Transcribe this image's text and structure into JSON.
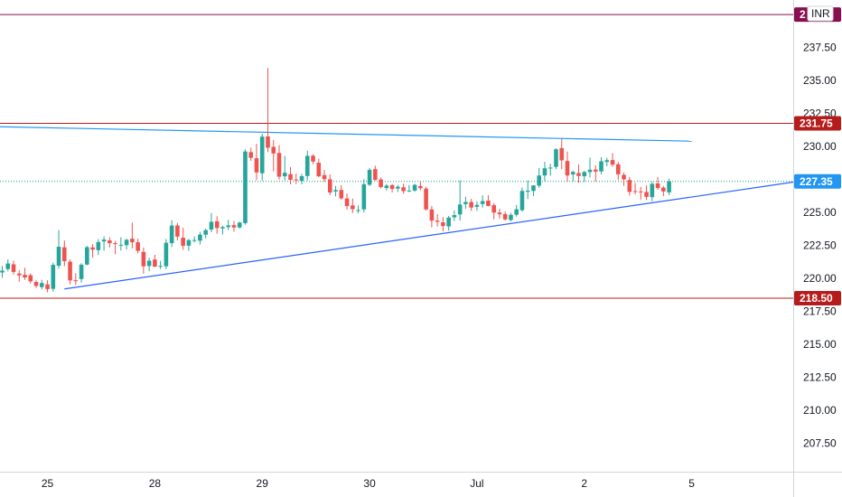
{
  "chart_data": {
    "type": "candlestick",
    "currency_badge": "INR",
    "y_axis_ticks": [
      237.5,
      235.0,
      232.5,
      230.0,
      227.5,
      225.0,
      222.5,
      220.0,
      217.5,
      215.0,
      212.5,
      210.0,
      207.5
    ],
    "y_axis_tick_labels": [
      "237.50",
      "235.00",
      "232.50",
      "230.00",
      "227.50",
      "225.00",
      "222.50",
      "220.00",
      "217.50",
      "215.00",
      "212.50",
      "210.00",
      "207.50"
    ],
    "ylim": [
      205.0,
      240.0
    ],
    "x_axis_ticks": [
      {
        "label": "25",
        "index": 8
      },
      {
        "label": "28",
        "index": 27
      },
      {
        "label": "29",
        "index": 46
      },
      {
        "label": "30",
        "index": 65
      },
      {
        "label": "Jul",
        "index": 84
      },
      {
        "label": "2",
        "index": 103
      },
      {
        "label": "5",
        "index": 122
      }
    ],
    "horizontal_levels": [
      {
        "value": 240.0,
        "label": "2",
        "color": "#880e4f"
      },
      {
        "value": 231.75,
        "label": "231.75",
        "color": "#b71c1c"
      },
      {
        "value": 218.5,
        "label": "218.50",
        "color": "#b71c1c"
      }
    ],
    "last_price": {
      "value": 227.35,
      "label": "227.35",
      "color": "#2196f3"
    },
    "trendlines": [
      {
        "x1": -1.0,
        "y1": 231.5,
        "x2": 122.0,
        "y2": 230.4,
        "color": "#2196f3"
      },
      {
        "x1": 11.0,
        "y1": 219.2,
        "x2": 140.0,
        "y2": 227.3,
        "color": "#2962ff"
      }
    ],
    "colors": {
      "up": "#26a69a",
      "down": "#ef5350"
    },
    "candles": [
      [
        220.45,
        220.95,
        220.05,
        220.59
      ],
      [
        220.71,
        221.44,
        220.54,
        221.13
      ],
      [
        221.07,
        221.35,
        220.3,
        220.49
      ],
      [
        220.37,
        220.62,
        219.75,
        220.23
      ],
      [
        220.27,
        220.81,
        219.89,
        220.07
      ],
      [
        220.24,
        220.38,
        219.61,
        219.78
      ],
      [
        219.73,
        219.85,
        219.28,
        219.43
      ],
      [
        219.34,
        219.9,
        219.16,
        219.65
      ],
      [
        219.55,
        219.86,
        218.95,
        219.19
      ],
      [
        219.21,
        221.2,
        219.0,
        221.03
      ],
      [
        220.96,
        223.67,
        220.74,
        222.4
      ],
      [
        222.36,
        222.87,
        220.93,
        221.31
      ],
      [
        221.27,
        221.44,
        219.55,
        219.85
      ],
      [
        219.86,
        220.39,
        219.5,
        219.81
      ],
      [
        219.95,
        221.15,
        219.69,
        221.04
      ],
      [
        221.05,
        222.46,
        220.99,
        222.37
      ],
      [
        222.35,
        222.6,
        221.57,
        222.18
      ],
      [
        222.14,
        222.98,
        221.77,
        222.76
      ],
      [
        222.8,
        223.19,
        222.11,
        222.94
      ],
      [
        222.88,
        223.12,
        222.34,
        222.67
      ],
      [
        222.67,
        222.84,
        221.83,
        222.62
      ],
      [
        222.5,
        223.12,
        222.11,
        222.55
      ],
      [
        222.52,
        223.01,
        222.19,
        222.93
      ],
      [
        223.01,
        224.23,
        222.28,
        222.74
      ],
      [
        222.74,
        223.0,
        221.88,
        222.09
      ],
      [
        222.01,
        222.34,
        220.36,
        220.92
      ],
      [
        220.94,
        221.56,
        220.55,
        221.34
      ],
      [
        221.43,
        221.79,
        220.86,
        220.89
      ],
      [
        220.89,
        221.32,
        220.71,
        220.95
      ],
      [
        220.92,
        222.98,
        220.7,
        222.7
      ],
      [
        222.67,
        224.41,
        222.38,
        224.01
      ],
      [
        224.01,
        224.21,
        222.89,
        223.17
      ],
      [
        223.08,
        223.85,
        222.16,
        222.47
      ],
      [
        222.48,
        223.0,
        222.09,
        222.9
      ],
      [
        222.91,
        223.18,
        222.73,
        222.91
      ],
      [
        222.86,
        223.53,
        222.57,
        223.32
      ],
      [
        223.31,
        223.77,
        223.03,
        223.66
      ],
      [
        223.7,
        224.95,
        223.5,
        224.29
      ],
      [
        224.33,
        224.71,
        223.38,
        223.82
      ],
      [
        223.79,
        224.0,
        223.33,
        223.89
      ],
      [
        223.89,
        224.44,
        223.66,
        224.02
      ],
      [
        224.04,
        224.35,
        223.54,
        223.86
      ],
      [
        223.86,
        224.3,
        223.78,
        224.23
      ],
      [
        224.19,
        229.79,
        224.07,
        229.62
      ],
      [
        229.57,
        229.91,
        228.91,
        229.14
      ],
      [
        229.11,
        230.21,
        227.44,
        228.03
      ],
      [
        227.97,
        230.96,
        227.41,
        230.75
      ],
      [
        230.76,
        235.95,
        229.57,
        229.91
      ],
      [
        229.97,
        230.49,
        228.12,
        229.47
      ],
      [
        229.51,
        230.11,
        227.49,
        227.71
      ],
      [
        227.74,
        229.28,
        227.44,
        228.01
      ],
      [
        227.9,
        228.43,
        227.13,
        227.47
      ],
      [
        227.5,
        227.94,
        227.16,
        227.49
      ],
      [
        227.4,
        227.93,
        227.13,
        227.75
      ],
      [
        227.76,
        229.68,
        227.43,
        229.29
      ],
      [
        229.3,
        229.41,
        228.65,
        228.86
      ],
      [
        228.77,
        229.07,
        227.67,
        227.74
      ],
      [
        227.83,
        228.23,
        227.32,
        227.52
      ],
      [
        227.51,
        227.88,
        226.32,
        226.51
      ],
      [
        226.59,
        227.01,
        226.22,
        226.7
      ],
      [
        226.7,
        227.07,
        225.94,
        226.07
      ],
      [
        226.06,
        226.43,
        225.21,
        225.48
      ],
      [
        225.53,
        226.05,
        224.96,
        225.25
      ],
      [
        225.18,
        225.53,
        224.94,
        225.18
      ],
      [
        225.23,
        227.51,
        225.0,
        227.14
      ],
      [
        227.1,
        228.36,
        227.0,
        228.23
      ],
      [
        228.28,
        228.54,
        227.41,
        227.47
      ],
      [
        227.5,
        227.65,
        226.82,
        226.92
      ],
      [
        226.85,
        227.17,
        226.67,
        227.03
      ],
      [
        227.07,
        227.16,
        226.52,
        226.78
      ],
      [
        226.81,
        227.08,
        226.56,
        226.95
      ],
      [
        226.91,
        227.18,
        226.42,
        226.62
      ],
      [
        226.63,
        227.08,
        226.54,
        226.66
      ],
      [
        226.66,
        227.18,
        226.57,
        227.09
      ],
      [
        227.0,
        227.38,
        226.68,
        226.84
      ],
      [
        226.81,
        226.95,
        225.14,
        225.23
      ],
      [
        225.23,
        225.48,
        223.87,
        224.38
      ],
      [
        224.38,
        224.88,
        223.93,
        224.29
      ],
      [
        224.25,
        224.65,
        223.56,
        223.97
      ],
      [
        223.94,
        224.74,
        223.62,
        224.61
      ],
      [
        224.63,
        225.16,
        224.35,
        224.8
      ],
      [
        224.85,
        227.43,
        224.38,
        225.6
      ],
      [
        225.63,
        226.19,
        225.28,
        225.79
      ],
      [
        225.79,
        226.03,
        225.11,
        225.37
      ],
      [
        225.43,
        225.84,
        225.12,
        225.57
      ],
      [
        225.64,
        226.29,
        225.37,
        225.86
      ],
      [
        225.9,
        226.31,
        225.46,
        225.49
      ],
      [
        225.55,
        225.72,
        224.48,
        224.99
      ],
      [
        224.99,
        225.28,
        224.53,
        224.86
      ],
      [
        224.88,
        225.07,
        224.38,
        224.47
      ],
      [
        224.43,
        224.97,
        224.33,
        224.82
      ],
      [
        224.83,
        225.57,
        224.68,
        225.24
      ],
      [
        225.17,
        226.88,
        225.07,
        226.63
      ],
      [
        226.57,
        227.42,
        226.02,
        226.65
      ],
      [
        226.63,
        227.06,
        226.24,
        227.05
      ],
      [
        227.03,
        228.38,
        226.86,
        227.8
      ],
      [
        227.8,
        228.84,
        227.35,
        228.35
      ],
      [
        228.38,
        228.69,
        227.78,
        228.4
      ],
      [
        228.45,
        229.86,
        228.28,
        229.79
      ],
      [
        229.88,
        230.58,
        228.29,
        228.95
      ],
      [
        228.9,
        229.62,
        227.34,
        227.8
      ],
      [
        227.88,
        228.18,
        227.35,
        228.07
      ],
      [
        227.99,
        228.65,
        227.25,
        227.76
      ],
      [
        227.74,
        228.14,
        227.32,
        228.07
      ],
      [
        228.06,
        229.16,
        227.65,
        228.24
      ],
      [
        228.25,
        228.58,
        227.34,
        228.1
      ],
      [
        228.11,
        229.19,
        227.89,
        228.88
      ],
      [
        228.83,
        229.14,
        228.5,
        228.96
      ],
      [
        228.97,
        229.5,
        228.47,
        228.62
      ],
      [
        228.65,
        228.82,
        227.46,
        227.89
      ],
      [
        227.85,
        228.04,
        227.02,
        227.51
      ],
      [
        227.46,
        227.69,
        226.29,
        226.56
      ],
      [
        226.62,
        227.23,
        226.37,
        226.56
      ],
      [
        226.59,
        226.94,
        225.98,
        226.58
      ],
      [
        226.55,
        227.05,
        225.94,
        226.18
      ],
      [
        226.16,
        227.32,
        225.85,
        227.17
      ],
      [
        227.2,
        227.68,
        226.72,
        226.85
      ],
      [
        226.88,
        227.01,
        226.24,
        226.59
      ],
      [
        226.52,
        227.56,
        226.31,
        227.35
      ]
    ]
  }
}
